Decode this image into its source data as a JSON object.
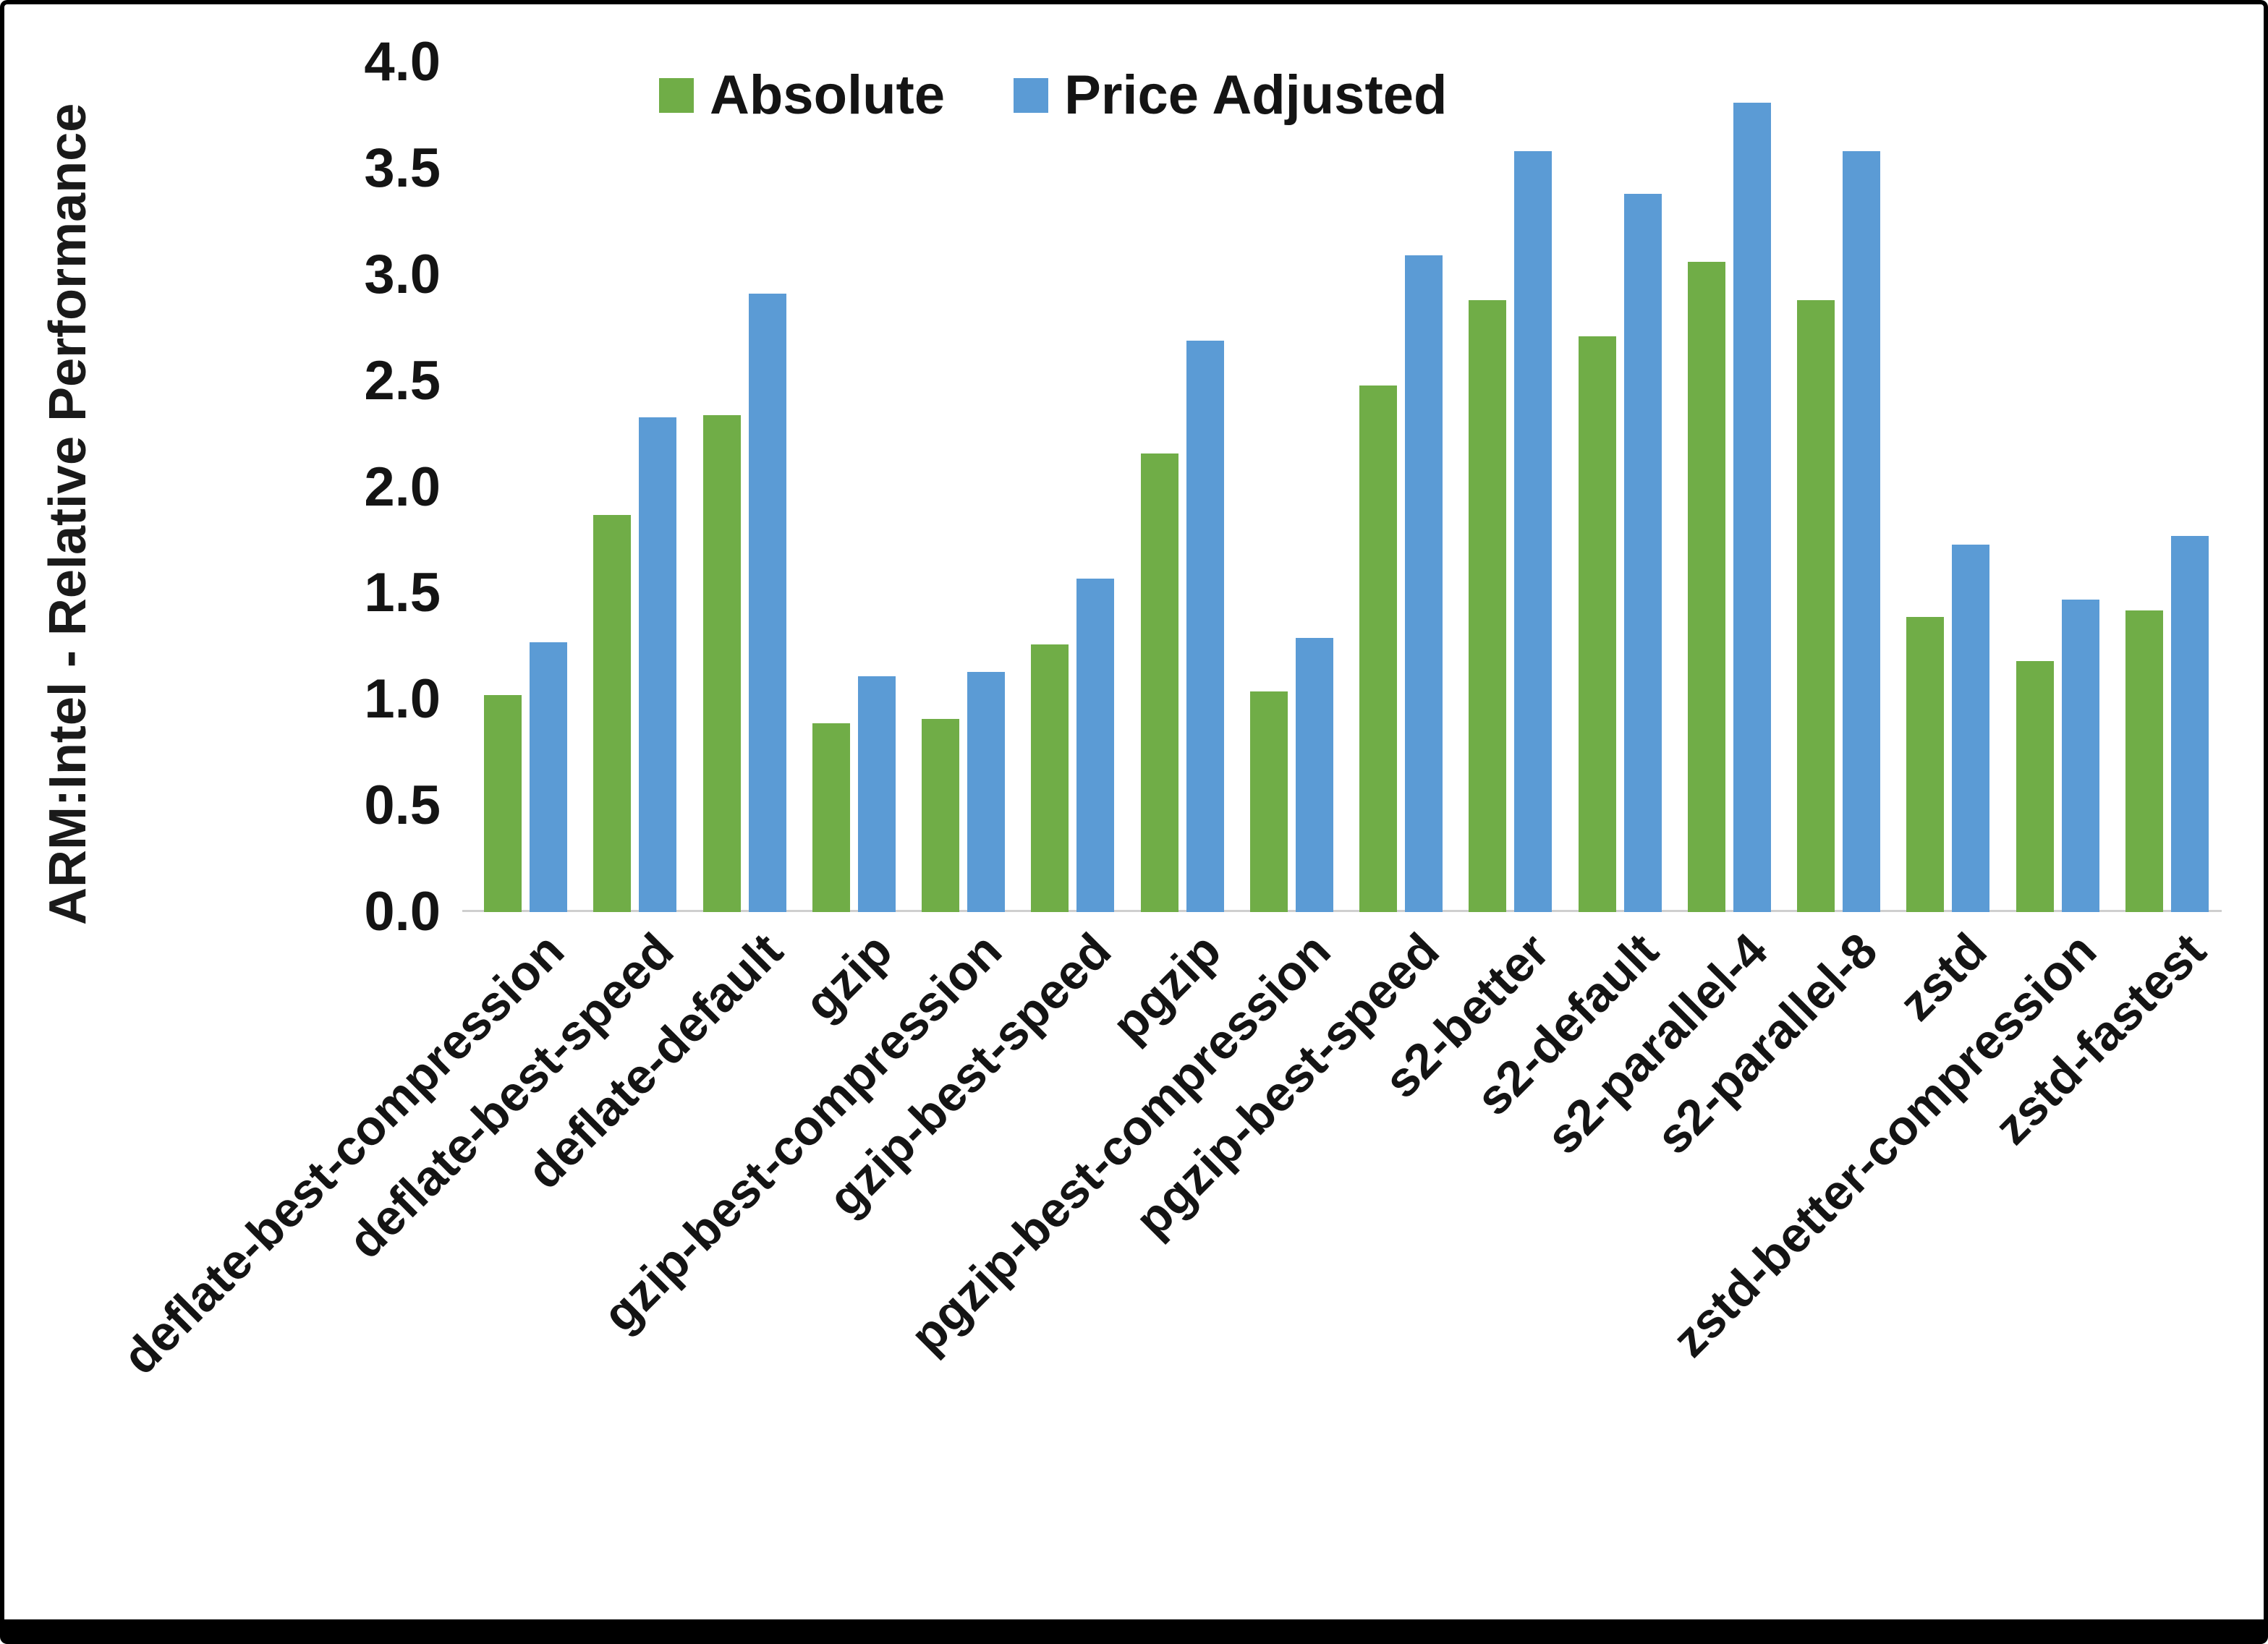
{
  "chart_data": {
    "type": "bar",
    "title": "",
    "xlabel": "",
    "ylabel": "ARM:Intel - Relative Performance",
    "ylim": [
      0,
      4.0
    ],
    "ytick_step": 0.5,
    "yticks": [
      "0.0",
      "0.5",
      "1.0",
      "1.5",
      "2.0",
      "2.5",
      "3.0",
      "3.5",
      "4.0"
    ],
    "grid": false,
    "legend_position": "top-center",
    "categories": [
      "deflate-best-compression",
      "deflate-best-speed",
      "deflate-default",
      "gzip",
      "gzip-best-compression",
      "gzip-best-speed",
      "pgzip",
      "pgzip-best-compression",
      "pgzip-best-speed",
      "s2-better",
      "s2-default",
      "s2-parallel-4",
      "s2-parallel-8",
      "zstd",
      "zstd-better-compression",
      "zstd-fastest"
    ],
    "series": [
      {
        "name": "Absolute",
        "color": "#70AD47",
        "values": [
          1.02,
          1.87,
          2.34,
          0.89,
          0.91,
          1.26,
          2.16,
          1.04,
          2.48,
          2.88,
          2.71,
          3.06,
          2.88,
          1.39,
          1.18,
          1.42
        ]
      },
      {
        "name": "Price Adjusted",
        "color": "#5B9BD5",
        "values": [
          1.27,
          2.33,
          2.91,
          1.11,
          1.13,
          1.57,
          2.69,
          1.29,
          3.09,
          3.58,
          3.38,
          3.81,
          3.58,
          1.73,
          1.47,
          1.77
        ]
      }
    ]
  }
}
